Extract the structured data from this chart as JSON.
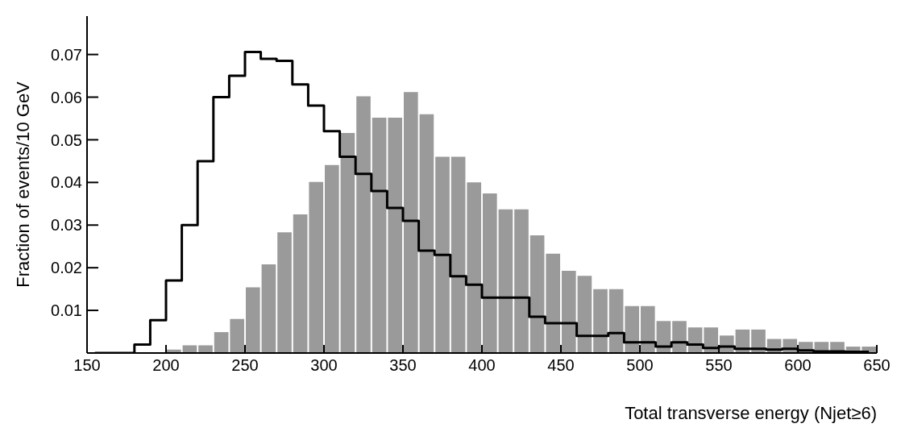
{
  "chart_data": {
    "type": "histogram",
    "xlabel": "Total transverse energy (Njet≥6)",
    "ylabel": "Fraction of events/10 GeV",
    "bins": [
      150,
      160,
      170,
      180,
      190,
      200,
      210,
      220,
      230,
      240,
      250,
      260,
      270,
      280,
      290,
      300,
      310,
      320,
      330,
      340,
      350,
      360,
      370,
      380,
      390,
      400,
      410,
      420,
      430,
      440,
      450,
      460,
      470,
      480,
      490,
      500,
      510,
      520,
      530,
      540,
      550,
      560,
      570,
      580,
      590,
      600,
      610,
      620,
      630,
      640,
      650
    ],
    "series": [
      {
        "color": "#9a9a9a",
        "values": [
          0,
          0,
          0,
          0,
          0,
          0.0008,
          0.0018,
          0.0018,
          0.0049,
          0.008,
          0.0154,
          0.0208,
          0.0283,
          0.0325,
          0.0401,
          0.0441,
          0.0516,
          0.0602,
          0.0552,
          0.0552,
          0.0612,
          0.056,
          0.046,
          0.046,
          0.04,
          0.0374,
          0.0337,
          0.0337,
          0.0276,
          0.0233,
          0.0193,
          0.0181,
          0.015,
          0.015,
          0.011,
          0.011,
          0.0075,
          0.0075,
          0.006,
          0.006,
          0.0041,
          0.0055,
          0.0055,
          0.0033,
          0.0033,
          0.0026,
          0.0026,
          0.0026,
          0.0015,
          0.0015
        ]
      },
      {
        "type": "step",
        "color": "#000000",
        "x": [
          155,
          165,
          175,
          185,
          195,
          205,
          215,
          225,
          235,
          245,
          255,
          265,
          275,
          285,
          295,
          305,
          315,
          325,
          335,
          345,
          355,
          365,
          375,
          385,
          395,
          405,
          415,
          425,
          435,
          445,
          455,
          465,
          475,
          485,
          495,
          505,
          515,
          525,
          535,
          545,
          555,
          565,
          575,
          585,
          595,
          605,
          615,
          625,
          635,
          645
        ],
        "values": [
          0,
          0,
          0,
          0.002,
          0.0077,
          0.017,
          0.03,
          0.045,
          0.06,
          0.065,
          0.0706,
          0.069,
          0.0685,
          0.063,
          0.058,
          0.052,
          0.046,
          0.042,
          0.038,
          0.034,
          0.031,
          0.024,
          0.023,
          0.018,
          0.016,
          0.013,
          0.013,
          0.013,
          0.0085,
          0.007,
          0.007,
          0.004,
          0.004,
          0.0047,
          0.0025,
          0.0025,
          0.0015,
          0.0025,
          0.002,
          0.0012,
          0.0015,
          0.001,
          0.001,
          0.0008,
          0.001,
          0.0006,
          0.0004,
          0.0004,
          0.0003,
          0.0003
        ]
      }
    ],
    "xlim": [
      150,
      650
    ],
    "xticks": [
      150,
      200,
      250,
      300,
      350,
      400,
      450,
      500,
      550,
      600,
      650
    ],
    "ylim": [
      0,
      0.079
    ],
    "yticks": [
      0.01,
      0.02,
      0.03,
      0.04,
      0.05,
      0.06,
      0.07
    ],
    "grid": false
  }
}
